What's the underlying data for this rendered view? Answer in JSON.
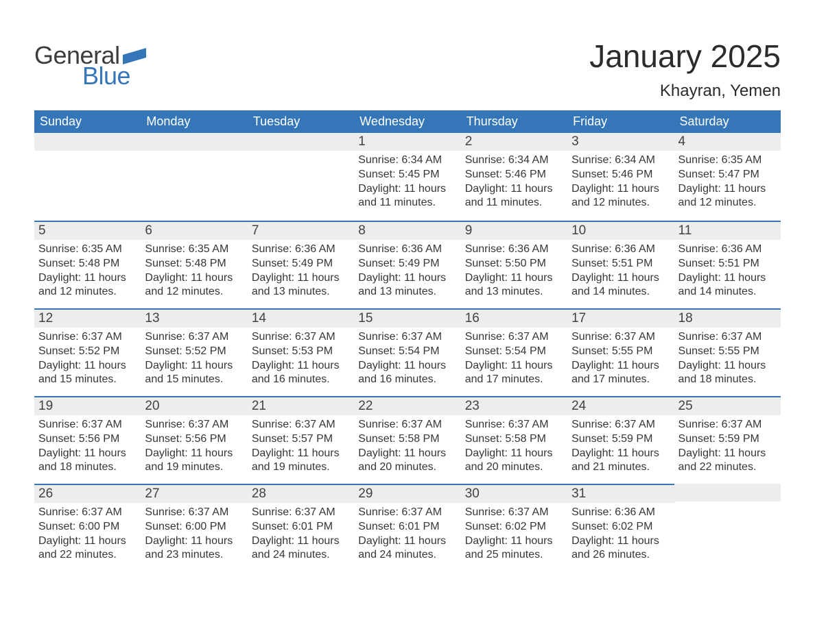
{
  "brand": {
    "general": "General",
    "blue": "Blue"
  },
  "colors": {
    "header_bg": "#3476b8",
    "header_text": "#ffffff",
    "daynum_bg": "#ededed",
    "daynum_border": "#3476b8",
    "body_text": "#363636",
    "page_bg": "#ffffff",
    "logo_dark": "#3c3c3c",
    "logo_blue": "#3476b8"
  },
  "title": "January 2025",
  "location": "Khayran, Yemen",
  "weekdays": [
    "Sunday",
    "Monday",
    "Tuesday",
    "Wednesday",
    "Thursday",
    "Friday",
    "Saturday"
  ],
  "labels": {
    "sunrise": "Sunrise: ",
    "sunset": "Sunset: ",
    "daylight": "Daylight: "
  },
  "weeks": [
    [
      null,
      null,
      null,
      {
        "n": "1",
        "sr": "6:34 AM",
        "ss": "5:45 PM",
        "dl": "11 hours and 11 minutes."
      },
      {
        "n": "2",
        "sr": "6:34 AM",
        "ss": "5:46 PM",
        "dl": "11 hours and 11 minutes."
      },
      {
        "n": "3",
        "sr": "6:34 AM",
        "ss": "5:46 PM",
        "dl": "11 hours and 12 minutes."
      },
      {
        "n": "4",
        "sr": "6:35 AM",
        "ss": "5:47 PM",
        "dl": "11 hours and 12 minutes."
      }
    ],
    [
      {
        "n": "5",
        "sr": "6:35 AM",
        "ss": "5:48 PM",
        "dl": "11 hours and 12 minutes."
      },
      {
        "n": "6",
        "sr": "6:35 AM",
        "ss": "5:48 PM",
        "dl": "11 hours and 12 minutes."
      },
      {
        "n": "7",
        "sr": "6:36 AM",
        "ss": "5:49 PM",
        "dl": "11 hours and 13 minutes."
      },
      {
        "n": "8",
        "sr": "6:36 AM",
        "ss": "5:49 PM",
        "dl": "11 hours and 13 minutes."
      },
      {
        "n": "9",
        "sr": "6:36 AM",
        "ss": "5:50 PM",
        "dl": "11 hours and 13 minutes."
      },
      {
        "n": "10",
        "sr": "6:36 AM",
        "ss": "5:51 PM",
        "dl": "11 hours and 14 minutes."
      },
      {
        "n": "11",
        "sr": "6:36 AM",
        "ss": "5:51 PM",
        "dl": "11 hours and 14 minutes."
      }
    ],
    [
      {
        "n": "12",
        "sr": "6:37 AM",
        "ss": "5:52 PM",
        "dl": "11 hours and 15 minutes."
      },
      {
        "n": "13",
        "sr": "6:37 AM",
        "ss": "5:52 PM",
        "dl": "11 hours and 15 minutes."
      },
      {
        "n": "14",
        "sr": "6:37 AM",
        "ss": "5:53 PM",
        "dl": "11 hours and 16 minutes."
      },
      {
        "n": "15",
        "sr": "6:37 AM",
        "ss": "5:54 PM",
        "dl": "11 hours and 16 minutes."
      },
      {
        "n": "16",
        "sr": "6:37 AM",
        "ss": "5:54 PM",
        "dl": "11 hours and 17 minutes."
      },
      {
        "n": "17",
        "sr": "6:37 AM",
        "ss": "5:55 PM",
        "dl": "11 hours and 17 minutes."
      },
      {
        "n": "18",
        "sr": "6:37 AM",
        "ss": "5:55 PM",
        "dl": "11 hours and 18 minutes."
      }
    ],
    [
      {
        "n": "19",
        "sr": "6:37 AM",
        "ss": "5:56 PM",
        "dl": "11 hours and 18 minutes."
      },
      {
        "n": "20",
        "sr": "6:37 AM",
        "ss": "5:56 PM",
        "dl": "11 hours and 19 minutes."
      },
      {
        "n": "21",
        "sr": "6:37 AM",
        "ss": "5:57 PM",
        "dl": "11 hours and 19 minutes."
      },
      {
        "n": "22",
        "sr": "6:37 AM",
        "ss": "5:58 PM",
        "dl": "11 hours and 20 minutes."
      },
      {
        "n": "23",
        "sr": "6:37 AM",
        "ss": "5:58 PM",
        "dl": "11 hours and 20 minutes."
      },
      {
        "n": "24",
        "sr": "6:37 AM",
        "ss": "5:59 PM",
        "dl": "11 hours and 21 minutes."
      },
      {
        "n": "25",
        "sr": "6:37 AM",
        "ss": "5:59 PM",
        "dl": "11 hours and 22 minutes."
      }
    ],
    [
      {
        "n": "26",
        "sr": "6:37 AM",
        "ss": "6:00 PM",
        "dl": "11 hours and 22 minutes."
      },
      {
        "n": "27",
        "sr": "6:37 AM",
        "ss": "6:00 PM",
        "dl": "11 hours and 23 minutes."
      },
      {
        "n": "28",
        "sr": "6:37 AM",
        "ss": "6:01 PM",
        "dl": "11 hours and 24 minutes."
      },
      {
        "n": "29",
        "sr": "6:37 AM",
        "ss": "6:01 PM",
        "dl": "11 hours and 24 minutes."
      },
      {
        "n": "30",
        "sr": "6:37 AM",
        "ss": "6:02 PM",
        "dl": "11 hours and 25 minutes."
      },
      {
        "n": "31",
        "sr": "6:36 AM",
        "ss": "6:02 PM",
        "dl": "11 hours and 26 minutes."
      },
      null
    ]
  ]
}
